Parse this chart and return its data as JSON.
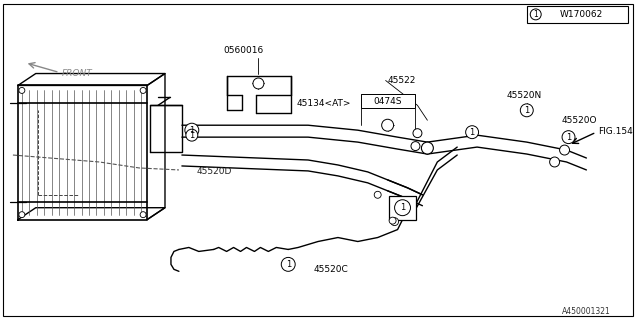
{
  "bg_color": "#ffffff",
  "line_color": "#000000",
  "parts": {
    "top_label": "0560016",
    "bracket_label": "45134<AT>",
    "center_label": "0474S",
    "pipe_d_label": "45520D",
    "pipe_c_label": "45520C",
    "pipe_n_label": "45520N",
    "pipe_o_label": "45520O",
    "pipe_22_label": "45522",
    "fig_label": "FIG.154",
    "ref_box": "W170062",
    "bottom_ref": "A450001321",
    "front_label": "FRONT"
  }
}
